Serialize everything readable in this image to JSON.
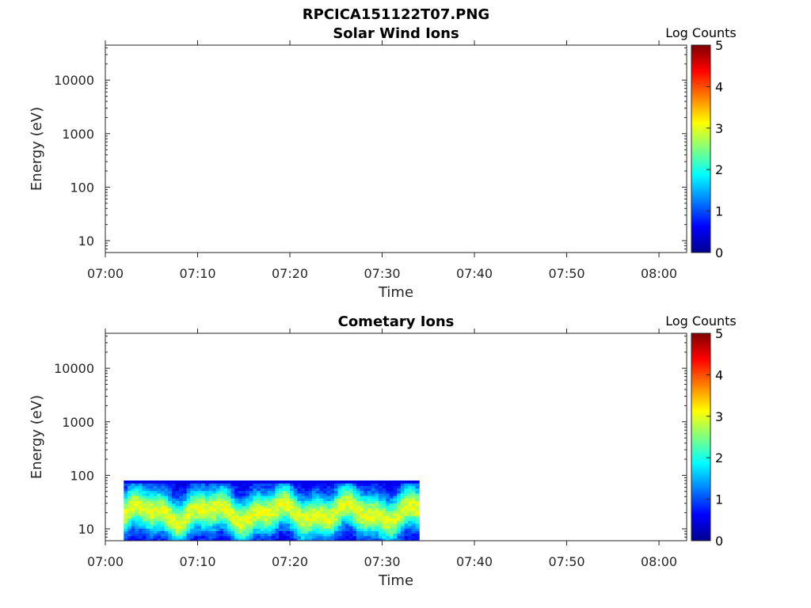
{
  "figure_title": "RPCICA151122T07.PNG",
  "chart_data": [
    {
      "type": "heatmap",
      "title": "Solar Wind Ions",
      "xlabel": "Time",
      "ylabel": "Energy (eV)",
      "x_ticks": [
        "07:00",
        "07:10",
        "07:20",
        "07:30",
        "07:40",
        "07:50",
        "08:00"
      ],
      "y_scale": "log",
      "y_ticks": [
        {
          "value": 10,
          "label": "10"
        },
        {
          "value": 100,
          "label": "100"
        },
        {
          "value": 1000,
          "label": "1000"
        },
        {
          "value": 10000,
          "label": "10000"
        }
      ],
      "ylim": [
        6,
        45000
      ],
      "x_range_minutes": [
        0,
        63
      ],
      "colorbar": {
        "label": "Log Counts",
        "min": 0,
        "max": 5,
        "ticks": [
          "0",
          "1",
          "2",
          "3",
          "4",
          "5"
        ]
      },
      "data": []
    },
    {
      "type": "heatmap",
      "title": "Cometary Ions",
      "xlabel": "Time",
      "ylabel": "Energy (eV)",
      "x_ticks": [
        "07:00",
        "07:10",
        "07:20",
        "07:30",
        "07:40",
        "07:50",
        "08:00"
      ],
      "y_scale": "log",
      "y_ticks": [
        {
          "value": 10,
          "label": "10"
        },
        {
          "value": 100,
          "label": "100"
        },
        {
          "value": 1000,
          "label": "1000"
        },
        {
          "value": 10000,
          "label": "10000"
        }
      ],
      "ylim": [
        6,
        45000
      ],
      "x_range_minutes": [
        0,
        63
      ],
      "colorbar": {
        "label": "Log Counts",
        "min": 0,
        "max": 5,
        "ticks": [
          "0",
          "1",
          "2",
          "3",
          "4",
          "5"
        ]
      },
      "data": [
        {
          "time_span": [
            "07:02",
            "07:34"
          ],
          "energy_span_eV": [
            6,
            80
          ],
          "log_counts_range": [
            0.5,
            3
          ],
          "peak_energy_eV": 20
        }
      ]
    }
  ]
}
